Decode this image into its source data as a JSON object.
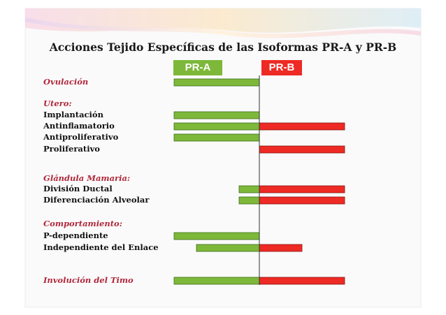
{
  "title": "Acciones Tejido Específicas de las Isoformas PR-A y PR-B",
  "legend": {
    "pra": "PR-A",
    "prb": "PR-B",
    "pra_color": "#7db83a",
    "prb_color": "#ee2a24"
  },
  "rows": [
    {
      "label": "Ovulación",
      "header": true,
      "a": "long",
      "b": null
    },
    {
      "label": "Utero:",
      "header": true,
      "a": null,
      "b": null
    },
    {
      "label": "Implantación",
      "header": false,
      "a": "long",
      "b": null
    },
    {
      "label": "Antinflamatorio",
      "header": false,
      "a": "long",
      "b": "long"
    },
    {
      "label": "Antiproliferativo",
      "header": false,
      "a": "long",
      "b": null
    },
    {
      "label": "Proliferativo",
      "header": false,
      "a": null,
      "b": "long"
    },
    {
      "label": "Glándula Mamaria:",
      "header": true,
      "a": null,
      "b": null
    },
    {
      "label": "División Ductal",
      "header": false,
      "a": "short",
      "b": "long"
    },
    {
      "label": "Diferenciación Alveolar",
      "header": false,
      "a": "short",
      "b": "long"
    },
    {
      "label": "Comportamiento:",
      "header": true,
      "a": null,
      "b": null
    },
    {
      "label": "P-dependiente",
      "header": false,
      "a": "long",
      "b": null
    },
    {
      "label": "Independiente del Enlace",
      "header": false,
      "a": "medium",
      "b": "medium"
    },
    {
      "label": "Involución del Timo",
      "header": true,
      "a": "long",
      "b": "long"
    }
  ]
}
